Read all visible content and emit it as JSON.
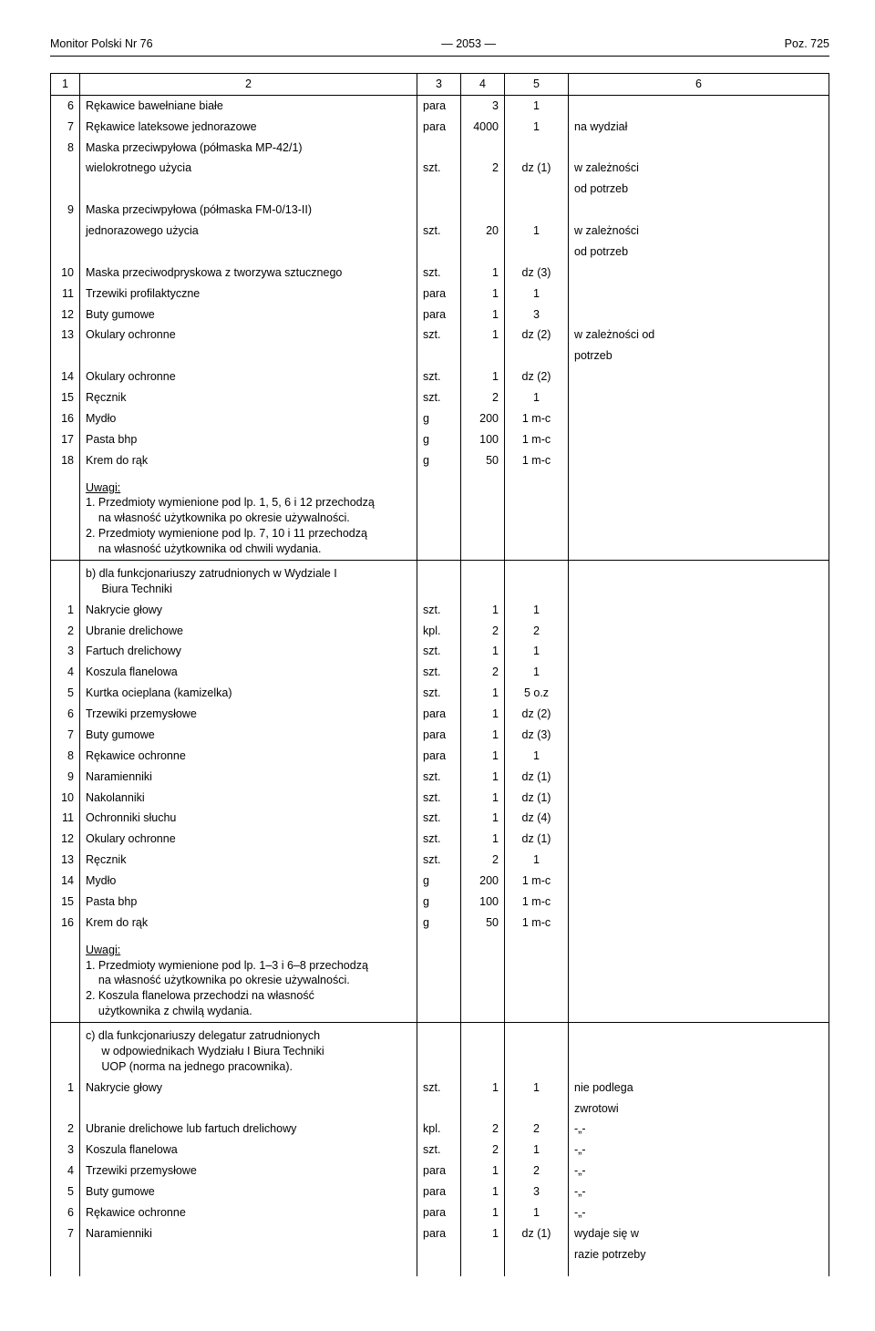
{
  "header": {
    "left": "Monitor Polski Nr 76",
    "mid": "— 2053 —",
    "right": "Poz. 725"
  },
  "colhead": [
    "1",
    "2",
    "3",
    "4",
    "5",
    "6"
  ],
  "secA": {
    "rows": [
      {
        "n": "6",
        "d": "Rękawice bawełniane białe",
        "u": "para",
        "q": "3",
        "p": "1",
        "r": ""
      },
      {
        "n": "7",
        "d": "Rękawice lateksowe jednorazowe",
        "u": "para",
        "q": "4000",
        "p": "1",
        "r": "na wydział"
      },
      {
        "n": "8",
        "d": "Maska przeciwpyłowa (półmaska MP-42/1)",
        "u": "",
        "q": "",
        "p": "",
        "r": ""
      },
      {
        "n": "",
        "d": "wielokrotnego użycia",
        "u": "szt.",
        "q": "2",
        "p": "dz (1)",
        "r": "w zależności"
      },
      {
        "n": "",
        "d": "",
        "u": "",
        "q": "",
        "p": "",
        "r": "od potrzeb"
      },
      {
        "n": "9",
        "d": "Maska przeciwpyłowa (półmaska FM-0/13-II)",
        "u": "",
        "q": "",
        "p": "",
        "r": ""
      },
      {
        "n": "",
        "d": "jednorazowego użycia",
        "u": "szt.",
        "q": "20",
        "p": "1",
        "r": "w zależności"
      },
      {
        "n": "",
        "d": "",
        "u": "",
        "q": "",
        "p": "",
        "r": "od potrzeb"
      },
      {
        "n": "10",
        "d": "Maska przeciwodpryskowa z tworzywa sztucznego",
        "u": "szt.",
        "q": "1",
        "p": "dz (3)",
        "r": ""
      },
      {
        "n": "11",
        "d": "Trzewiki profilaktyczne",
        "u": "para",
        "q": "1",
        "p": "1",
        "r": ""
      },
      {
        "n": "12",
        "d": "Buty gumowe",
        "u": "para",
        "q": "1",
        "p": "3",
        "r": ""
      },
      {
        "n": "13",
        "d": "Okulary ochronne",
        "u": "szt.",
        "q": "1",
        "p": "dz (2)",
        "r": "w zależności od"
      },
      {
        "n": "",
        "d": "",
        "u": "",
        "q": "",
        "p": "",
        "r": "potrzeb"
      },
      {
        "n": "14",
        "d": "Okulary ochronne",
        "u": "szt.",
        "q": "1",
        "p": "dz (2)",
        "r": ""
      },
      {
        "n": "15",
        "d": "Ręcznik",
        "u": "szt.",
        "q": "2",
        "p": "1",
        "r": ""
      },
      {
        "n": "16",
        "d": "Mydło",
        "u": "g",
        "q": "200",
        "p": "1 m-c",
        "r": ""
      },
      {
        "n": "17",
        "d": "Pasta bhp",
        "u": "g",
        "q": "100",
        "p": "1 m-c",
        "r": ""
      },
      {
        "n": "18",
        "d": "Krem do rąk",
        "u": "g",
        "q": "50",
        "p": "1 m-c",
        "r": ""
      }
    ],
    "notes_label": "Uwagi:",
    "notes": [
      "1. Przedmioty wymienione pod lp. 1, 5, 6 i 12 przechodzą",
      "    na własność użytkownika po okresie używalności.",
      "2. Przedmioty wymienione pod lp. 7, 10 i 11 przechodzą",
      "    na własność użytkownika od chwili wydania."
    ]
  },
  "secB": {
    "head": [
      "b) dla funkcjonariuszy zatrudnionych w Wydziale I",
      "     Biura Techniki"
    ],
    "rows": [
      {
        "n": "1",
        "d": "Nakrycie głowy",
        "u": "szt.",
        "q": "1",
        "p": "1",
        "r": ""
      },
      {
        "n": "2",
        "d": "Ubranie drelichowe",
        "u": "kpl.",
        "q": "2",
        "p": "2",
        "r": ""
      },
      {
        "n": "3",
        "d": "Fartuch drelichowy",
        "u": "szt.",
        "q": "1",
        "p": "1",
        "r": ""
      },
      {
        "n": "4",
        "d": "Koszula flanelowa",
        "u": "szt.",
        "q": "2",
        "p": "1",
        "r": ""
      },
      {
        "n": "5",
        "d": "Kurtka ocieplana (kamizelka)",
        "u": "szt.",
        "q": "1",
        "p": "5 o.z",
        "r": ""
      },
      {
        "n": "6",
        "d": "Trzewiki przemysłowe",
        "u": "para",
        "q": "1",
        "p": "dz (2)",
        "r": ""
      },
      {
        "n": "7",
        "d": "Buty gumowe",
        "u": "para",
        "q": "1",
        "p": "dz (3)",
        "r": ""
      },
      {
        "n": "8",
        "d": "Rękawice ochronne",
        "u": "para",
        "q": "1",
        "p": "1",
        "r": ""
      },
      {
        "n": "9",
        "d": "Naramienniki",
        "u": "szt.",
        "q": "1",
        "p": "dz (1)",
        "r": ""
      },
      {
        "n": "10",
        "d": "Nakolanniki",
        "u": "szt.",
        "q": "1",
        "p": "dz (1)",
        "r": ""
      },
      {
        "n": "11",
        "d": "Ochronniki słuchu",
        "u": "szt.",
        "q": "1",
        "p": "dz (4)",
        "r": ""
      },
      {
        "n": "12",
        "d": "Okulary ochronne",
        "u": "szt.",
        "q": "1",
        "p": "dz (1)",
        "r": ""
      },
      {
        "n": "13",
        "d": "Ręcznik",
        "u": "szt.",
        "q": "2",
        "p": "1",
        "r": ""
      },
      {
        "n": "14",
        "d": "Mydło",
        "u": "g",
        "q": "200",
        "p": "1 m-c",
        "r": ""
      },
      {
        "n": "15",
        "d": "Pasta bhp",
        "u": "g",
        "q": "100",
        "p": "1 m-c",
        "r": ""
      },
      {
        "n": "16",
        "d": "Krem do rąk",
        "u": "g",
        "q": "50",
        "p": "1 m-c",
        "r": ""
      }
    ],
    "notes_label": "Uwagi:",
    "notes": [
      "1. Przedmioty wymienione pod lp. 1–3 i 6–8 przechodzą",
      "    na własność użytkownika po okresie używalności.",
      "2. Koszula flanelowa przechodzi na własność",
      "    użytkownika z chwilą wydania."
    ]
  },
  "secC": {
    "head": [
      "c) dla funkcjonariuszy delegatur zatrudnionych",
      "     w odpowiednikach Wydziału I Biura Techniki",
      "     UOP (norma na jednego pracownika)."
    ],
    "rows": [
      {
        "n": "1",
        "d": "Nakrycie głowy",
        "u": "szt.",
        "q": "1",
        "p": "1",
        "r": "nie podlega"
      },
      {
        "n": "",
        "d": "",
        "u": "",
        "q": "",
        "p": "",
        "r": "zwrotowi"
      },
      {
        "n": "2",
        "d": "Ubranie drelichowe lub fartuch drelichowy",
        "u": "kpl.",
        "q": "2",
        "p": "2",
        "r": "-„-"
      },
      {
        "n": "3",
        "d": "Koszula flanelowa",
        "u": "szt.",
        "q": "2",
        "p": "1",
        "r": "-„-"
      },
      {
        "n": "4",
        "d": "Trzewiki przemysłowe",
        "u": "para",
        "q": "1",
        "p": "2",
        "r": "-„-"
      },
      {
        "n": "5",
        "d": "Buty gumowe",
        "u": "para",
        "q": "1",
        "p": "3",
        "r": "-„-"
      },
      {
        "n": "6",
        "d": "Rękawice ochronne",
        "u": "para",
        "q": "1",
        "p": "1",
        "r": "-„-"
      },
      {
        "n": "7",
        "d": "Naramienniki",
        "u": "para",
        "q": "1",
        "p": "dz (1)",
        "r": "wydaje się w"
      },
      {
        "n": "",
        "d": "",
        "u": "",
        "q": "",
        "p": "",
        "r": "razie potrzeby"
      }
    ]
  },
  "marks": [
    "◣",
    "◢",
    "◢",
    "◣",
    "◢"
  ]
}
